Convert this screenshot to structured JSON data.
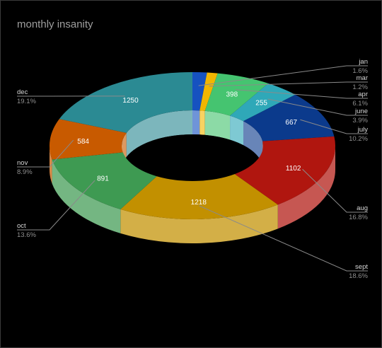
{
  "chart_data": {
    "type": "pie",
    "variant": "3d-donut",
    "title": "monthly insanity",
    "slices": [
      {
        "label": "jan",
        "value": 107,
        "percent": "1.6%",
        "color": "#1652c0"
      },
      {
        "label": "mar",
        "value": 78,
        "percent": "1.2%",
        "color": "#f2b600"
      },
      {
        "label": "apr",
        "value": 398,
        "percent": "6.1%",
        "color": "#45c470"
      },
      {
        "label": "june",
        "value": 255,
        "percent": "3.9%",
        "color": "#2fa8b8"
      },
      {
        "label": "july",
        "value": 667,
        "percent": "10.2%",
        "color": "#0b3a8c"
      },
      {
        "label": "aug",
        "value": 1102,
        "percent": "16.8%",
        "color": "#b0160f"
      },
      {
        "label": "sept",
        "value": 1218,
        "percent": "18.6%",
        "color": "#c29000"
      },
      {
        "label": "oct",
        "value": 891,
        "percent": "13.6%",
        "color": "#3e9a52"
      },
      {
        "label": "nov",
        "value": 584,
        "percent": "8.9%",
        "color": "#c85a00"
      },
      {
        "label": "dec",
        "value": 1250,
        "percent": "19.1%",
        "color": "#2b8a93"
      }
    ],
    "legend": "side labels with leader lines",
    "inner_labels": [
      "398",
      "255",
      "667",
      "1102",
      "1218",
      "891",
      "584",
      "1250"
    ]
  }
}
